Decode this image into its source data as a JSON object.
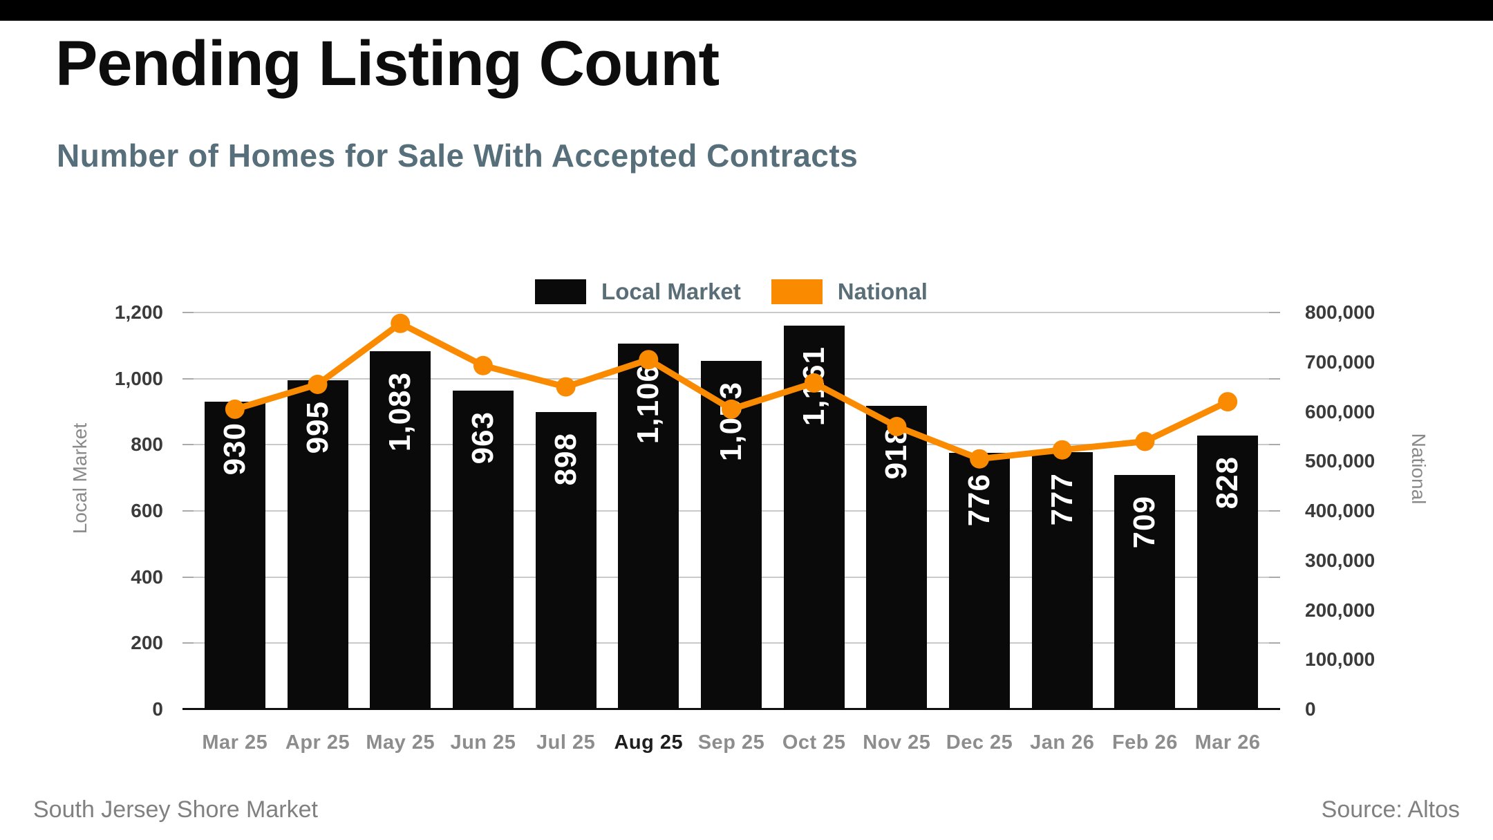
{
  "header": {
    "title": "Pending Listing Count",
    "subtitle": "Number of Homes for Sale With Accepted Contracts"
  },
  "legend": [
    {
      "label": "Local Market",
      "color": "#0a0a0a"
    },
    {
      "label": "National",
      "color": "#fa8a00"
    }
  ],
  "footer": {
    "left": "South Jersey Shore Market",
    "right": "Source: Altos"
  },
  "colors": {
    "bar": "#0a0a0a",
    "line": "#fa8a00",
    "subtitle": "#566f7a",
    "grid": "#c9c9c9",
    "tick_label": "#3b3b3b",
    "month_label": "#8d8d8d",
    "month_label_highlight": "#1e1e1e",
    "axis_title": "#8a8a8a",
    "footer_text": "#808080",
    "bar_value_label": "#ffffff"
  },
  "chart_data": {
    "type": "bar",
    "title": "Pending Listing Count",
    "subtitle": "Number of Homes for Sale With Accepted Contracts",
    "categories": [
      "Mar 25",
      "Apr 25",
      "May 25",
      "Jun 25",
      "Jul 25",
      "Aug 25",
      "Sep 25",
      "Oct 25",
      "Nov 25",
      "Dec 25",
      "Jan 26",
      "Feb 26",
      "Mar 26"
    ],
    "highlighted_category": "Aug 25",
    "series": [
      {
        "name": "Local Market",
        "type": "bar",
        "axis": "left",
        "color": "#0a0a0a",
        "values": [
          930,
          995,
          1083,
          963,
          898,
          1106,
          1053,
          1161,
          918,
          776,
          777,
          709,
          828
        ],
        "value_labels": [
          "930",
          "995",
          "1,083",
          "963",
          "898",
          "1,106",
          "1,053",
          "1,161",
          "918",
          "776",
          "777",
          "709",
          "828"
        ]
      },
      {
        "name": "National",
        "type": "line",
        "axis": "right",
        "color": "#fa8a00",
        "values": [
          605000,
          655000,
          778000,
          693000,
          650000,
          705000,
          605000,
          658000,
          570000,
          505000,
          523000,
          540000,
          620000
        ]
      }
    ],
    "left_axis": {
      "title": "Local Market",
      "min": 0,
      "max": 1200,
      "tick_step": 200,
      "tick_labels": [
        "0",
        "200",
        "400",
        "600",
        "800",
        "1,000",
        "1,200"
      ]
    },
    "right_axis": {
      "title": "National",
      "min": 0,
      "max": 800000,
      "tick_step": 100000,
      "tick_labels": [
        "0",
        "100,000",
        "200,000",
        "300,000",
        "400,000",
        "500,000",
        "600,000",
        "700,000",
        "800,000"
      ]
    },
    "grid": true,
    "legend_position": "top-center"
  }
}
